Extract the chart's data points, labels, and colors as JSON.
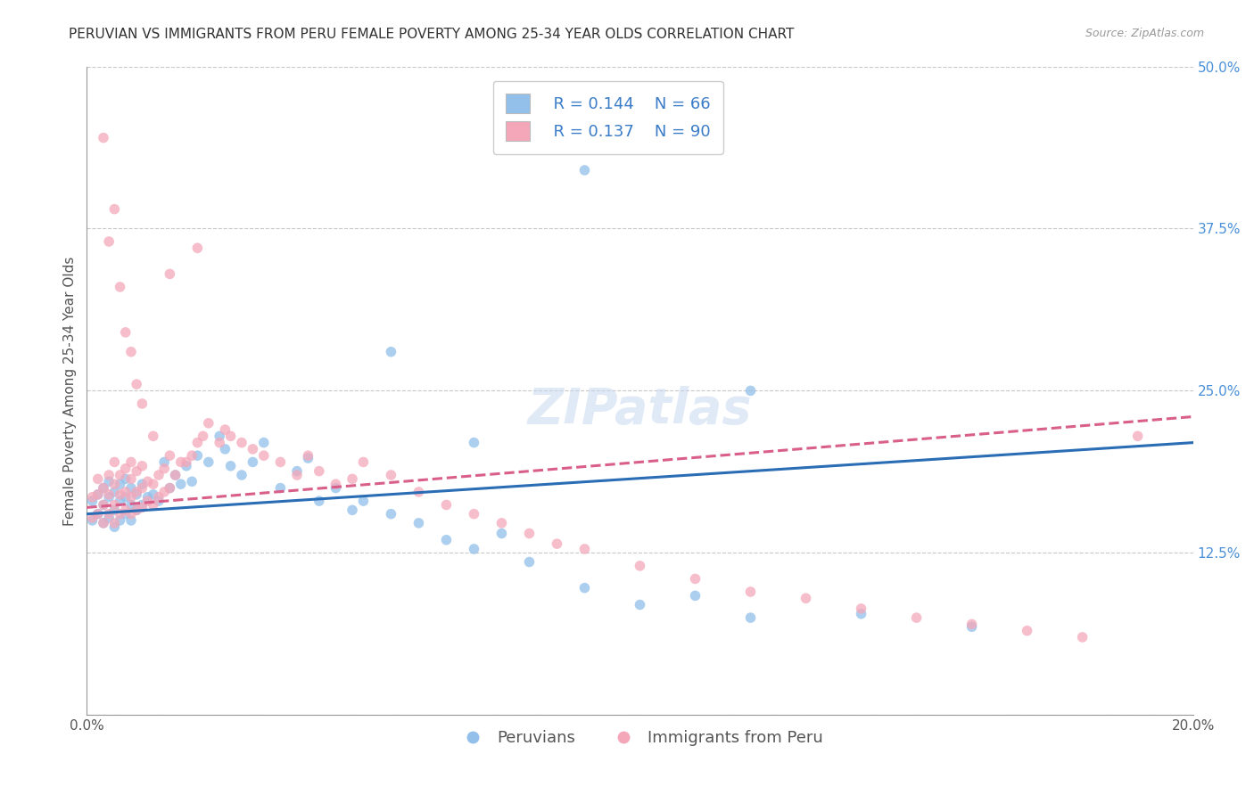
{
  "title": "PERUVIAN VS IMMIGRANTS FROM PERU FEMALE POVERTY AMONG 25-34 YEAR OLDS CORRELATION CHART",
  "source": "Source: ZipAtlas.com",
  "ylabel": "Female Poverty Among 25-34 Year Olds",
  "xlim": [
    0.0,
    0.2
  ],
  "ylim": [
    0.0,
    0.5
  ],
  "xticks": [
    0.0,
    0.04,
    0.08,
    0.12,
    0.16,
    0.2
  ],
  "xticklabels": [
    "0.0%",
    "",
    "",
    "",
    "",
    "20.0%"
  ],
  "yticks_right": [
    0.0,
    0.125,
    0.25,
    0.375,
    0.5
  ],
  "yticklabels_right": [
    "",
    "12.5%",
    "25.0%",
    "37.5%",
    "50.0%"
  ],
  "legend_blue_r": "R = 0.144",
  "legend_blue_n": "N = 66",
  "legend_pink_r": "R = 0.137",
  "legend_pink_n": "N = 90",
  "blue_color": "#92c0ea",
  "pink_color": "#f4a7b9",
  "trendline_blue": "#2a6db5",
  "trendline_pink": "#d95f8a",
  "background_color": "#ffffff",
  "grid_color": "#c8c8c8",
  "watermark": "ZIPatlas",
  "title_fontsize": 11,
  "axis_label_fontsize": 11,
  "tick_fontsize": 11,
  "legend_fontsize": 13,
  "watermark_fontsize": 40,
  "marker_size": 70,
  "blue_scatter_x": [
    0.001,
    0.001,
    0.002,
    0.002,
    0.003,
    0.003,
    0.003,
    0.004,
    0.004,
    0.004,
    0.005,
    0.005,
    0.005,
    0.006,
    0.006,
    0.006,
    0.007,
    0.007,
    0.007,
    0.008,
    0.008,
    0.008,
    0.009,
    0.009,
    0.01,
    0.01,
    0.011,
    0.012,
    0.013,
    0.014,
    0.015,
    0.016,
    0.017,
    0.018,
    0.019,
    0.02,
    0.022,
    0.024,
    0.025,
    0.026,
    0.028,
    0.03,
    0.032,
    0.035,
    0.038,
    0.04,
    0.042,
    0.045,
    0.048,
    0.05,
    0.055,
    0.06,
    0.065,
    0.07,
    0.075,
    0.08,
    0.09,
    0.1,
    0.11,
    0.12,
    0.14,
    0.16,
    0.055,
    0.07,
    0.09,
    0.12
  ],
  "blue_scatter_y": [
    0.15,
    0.165,
    0.155,
    0.17,
    0.148,
    0.162,
    0.175,
    0.152,
    0.168,
    0.18,
    0.145,
    0.158,
    0.172,
    0.15,
    0.165,
    0.178,
    0.155,
    0.168,
    0.182,
    0.15,
    0.162,
    0.175,
    0.158,
    0.17,
    0.162,
    0.178,
    0.168,
    0.17,
    0.165,
    0.195,
    0.175,
    0.185,
    0.178,
    0.192,
    0.18,
    0.2,
    0.195,
    0.215,
    0.205,
    0.192,
    0.185,
    0.195,
    0.21,
    0.175,
    0.188,
    0.198,
    0.165,
    0.175,
    0.158,
    0.165,
    0.155,
    0.148,
    0.135,
    0.128,
    0.14,
    0.118,
    0.098,
    0.085,
    0.092,
    0.075,
    0.078,
    0.068,
    0.28,
    0.21,
    0.42,
    0.25
  ],
  "pink_scatter_x": [
    0.001,
    0.001,
    0.002,
    0.002,
    0.002,
    0.003,
    0.003,
    0.003,
    0.004,
    0.004,
    0.004,
    0.005,
    0.005,
    0.005,
    0.005,
    0.006,
    0.006,
    0.006,
    0.007,
    0.007,
    0.007,
    0.008,
    0.008,
    0.008,
    0.008,
    0.009,
    0.009,
    0.009,
    0.01,
    0.01,
    0.01,
    0.011,
    0.011,
    0.012,
    0.012,
    0.013,
    0.013,
    0.014,
    0.014,
    0.015,
    0.015,
    0.016,
    0.017,
    0.018,
    0.019,
    0.02,
    0.021,
    0.022,
    0.024,
    0.025,
    0.026,
    0.028,
    0.03,
    0.032,
    0.035,
    0.038,
    0.04,
    0.042,
    0.045,
    0.048,
    0.05,
    0.055,
    0.06,
    0.065,
    0.07,
    0.075,
    0.08,
    0.085,
    0.09,
    0.1,
    0.11,
    0.12,
    0.13,
    0.14,
    0.15,
    0.16,
    0.17,
    0.18,
    0.19,
    0.004,
    0.005,
    0.006,
    0.007,
    0.008,
    0.009,
    0.01,
    0.012,
    0.015,
    0.02,
    0.003
  ],
  "pink_scatter_y": [
    0.152,
    0.168,
    0.155,
    0.17,
    0.182,
    0.148,
    0.162,
    0.175,
    0.155,
    0.17,
    0.185,
    0.148,
    0.162,
    0.178,
    0.195,
    0.155,
    0.17,
    0.185,
    0.158,
    0.172,
    0.19,
    0.155,
    0.168,
    0.182,
    0.195,
    0.158,
    0.172,
    0.188,
    0.16,
    0.175,
    0.192,
    0.165,
    0.18,
    0.162,
    0.178,
    0.168,
    0.185,
    0.172,
    0.19,
    0.175,
    0.2,
    0.185,
    0.195,
    0.195,
    0.2,
    0.21,
    0.215,
    0.225,
    0.21,
    0.22,
    0.215,
    0.21,
    0.205,
    0.2,
    0.195,
    0.185,
    0.2,
    0.188,
    0.178,
    0.182,
    0.195,
    0.185,
    0.172,
    0.162,
    0.155,
    0.148,
    0.14,
    0.132,
    0.128,
    0.115,
    0.105,
    0.095,
    0.09,
    0.082,
    0.075,
    0.07,
    0.065,
    0.06,
    0.215,
    0.365,
    0.39,
    0.33,
    0.295,
    0.28,
    0.255,
    0.24,
    0.215,
    0.34,
    0.36,
    0.445
  ]
}
